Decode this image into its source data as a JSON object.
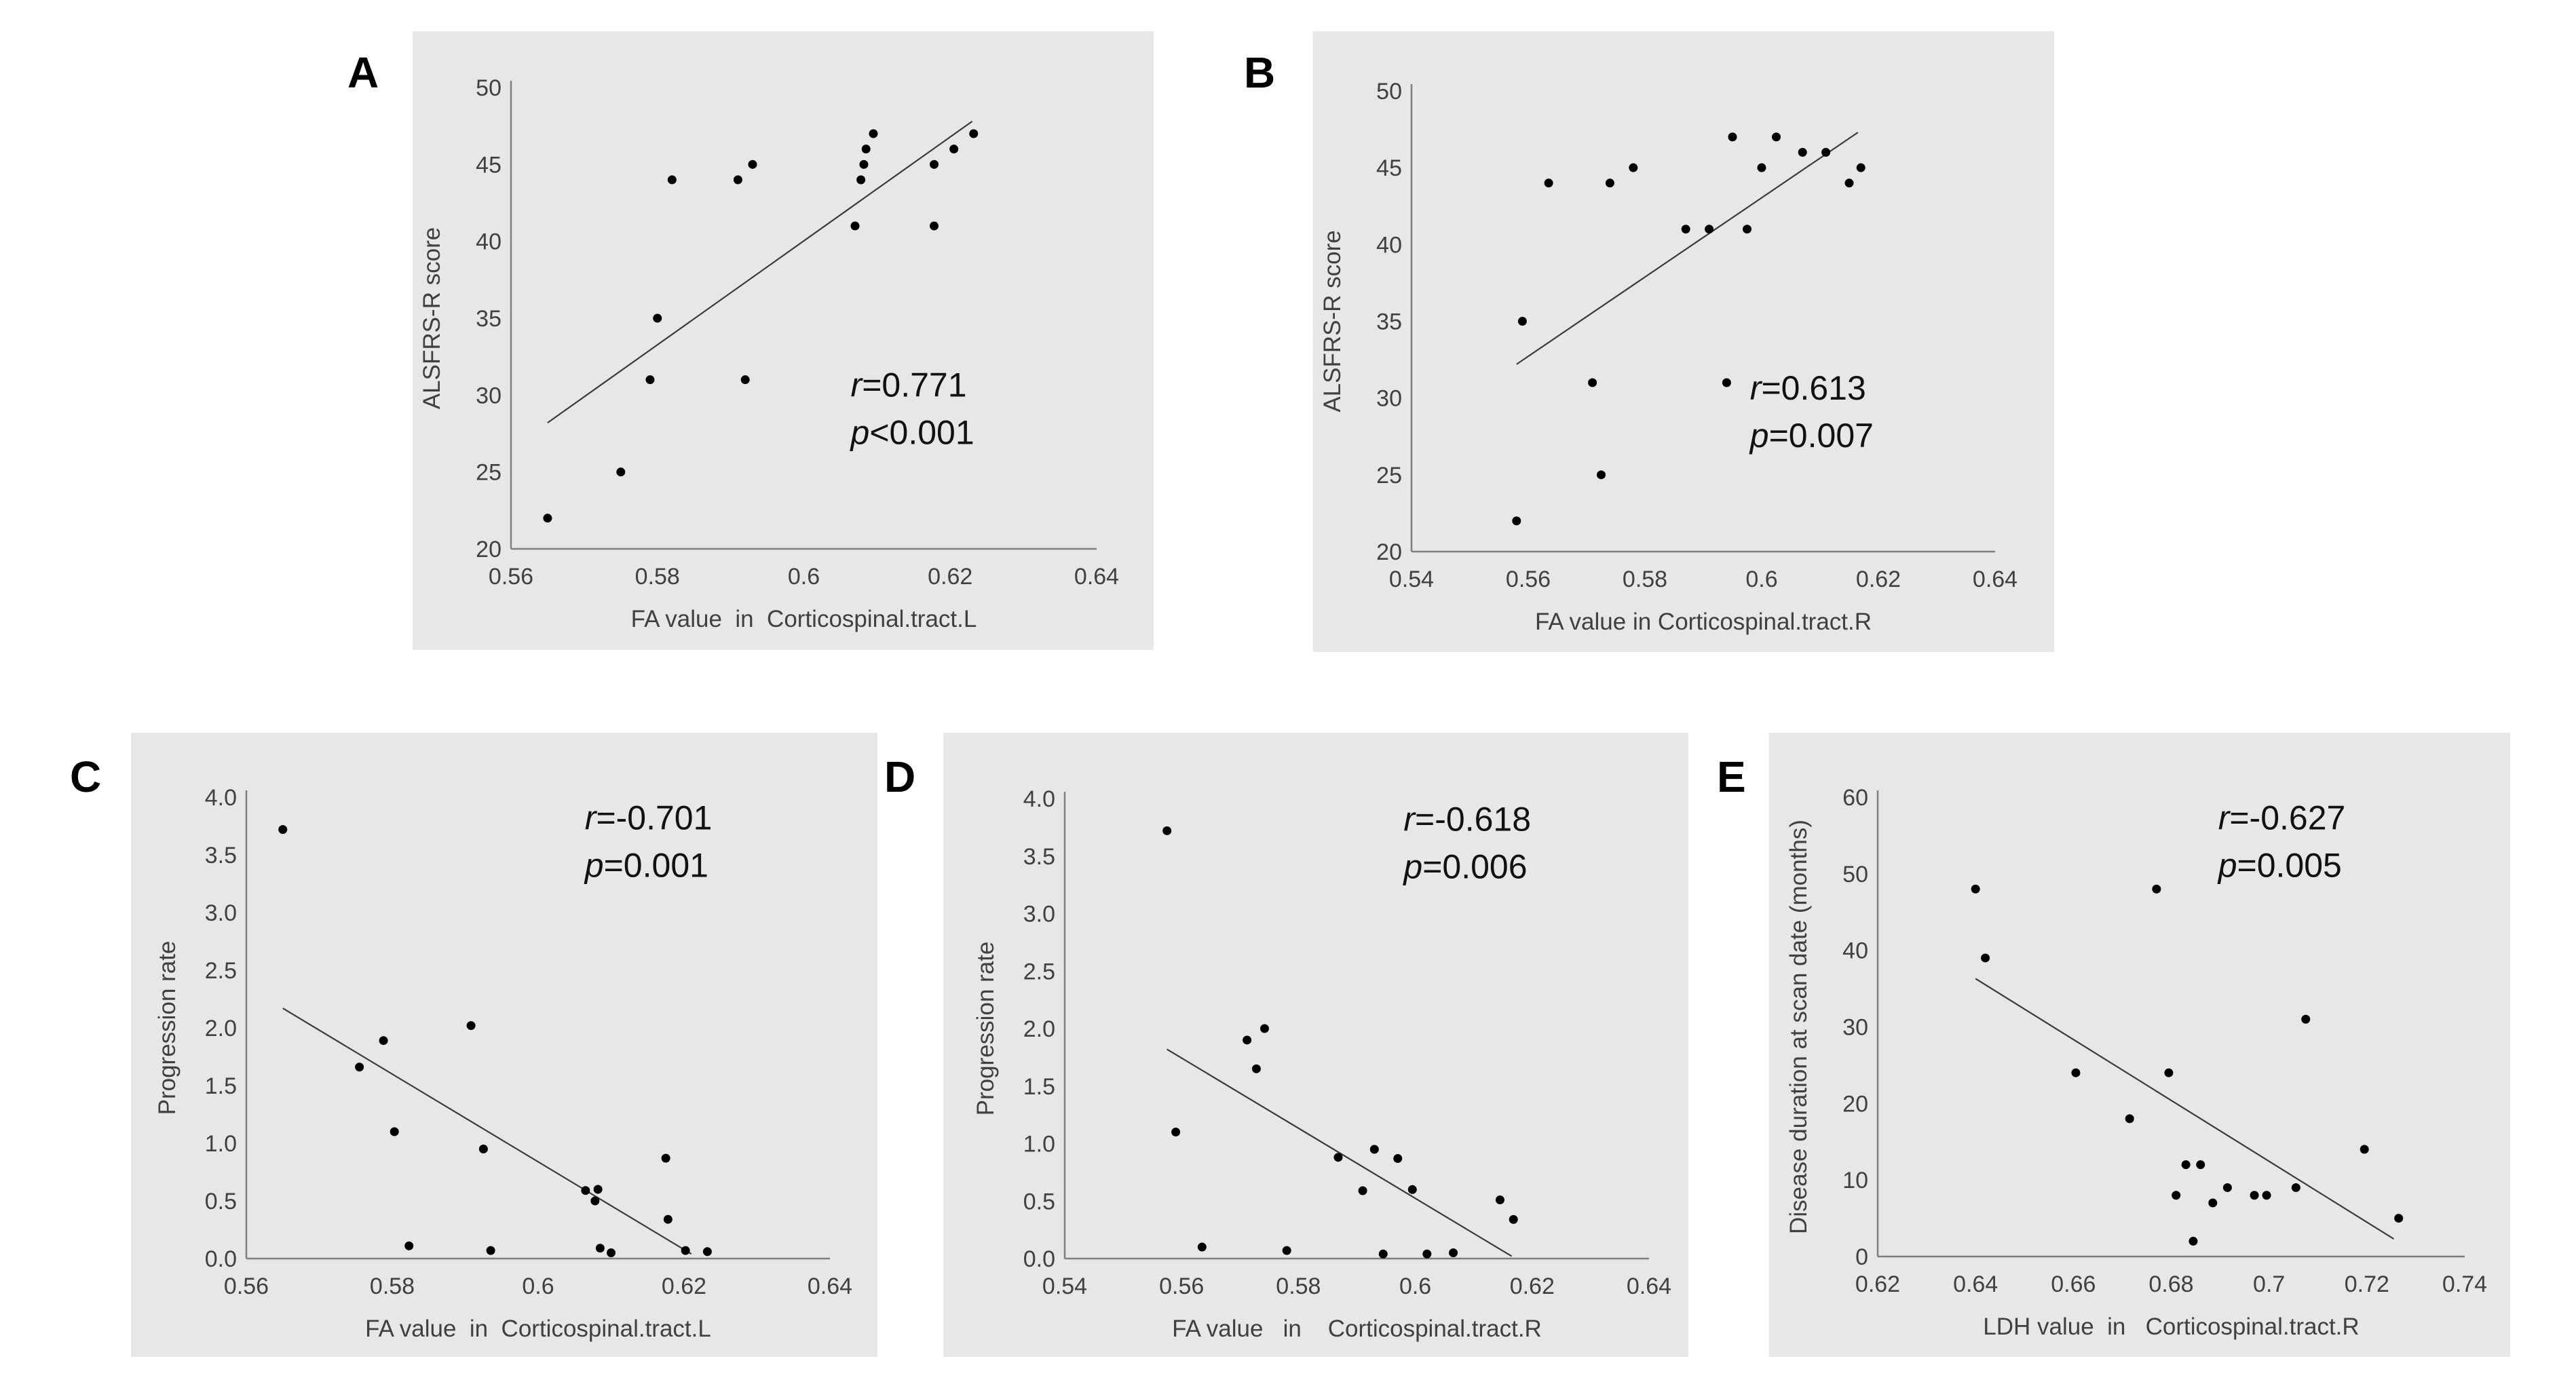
{
  "chart_data": [
    {
      "id": "A",
      "panel_label": "A",
      "type": "scatter",
      "xlabel": "FA value  in  Corticospinal.tract.L",
      "ylabel": "ALSFRS-R score",
      "xlim": [
        0.56,
        0.64
      ],
      "ylim": [
        20,
        50
      ],
      "xticks": [
        0.56,
        0.58,
        0.6,
        0.62,
        0.64
      ],
      "xtick_labels": [
        "0.56",
        "0.58",
        "0.6",
        "0.62",
        "0.64"
      ],
      "yticks": [
        20,
        25,
        30,
        35,
        40,
        45,
        50
      ],
      "ytick_labels": [
        "20",
        "25",
        "30",
        "35",
        "40",
        "45",
        "50"
      ],
      "points": [
        [
          0.565,
          22
        ],
        [
          0.575,
          25
        ],
        [
          0.579,
          31
        ],
        [
          0.58,
          35
        ],
        [
          0.582,
          44
        ],
        [
          0.591,
          44
        ],
        [
          0.593,
          45
        ],
        [
          0.592,
          31
        ],
        [
          0.607,
          41
        ],
        [
          0.6078,
          44
        ],
        [
          0.6082,
          45
        ],
        [
          0.6085,
          46
        ],
        [
          0.6095,
          47
        ],
        [
          0.6178,
          45
        ],
        [
          0.6178,
          41
        ],
        [
          0.6205,
          46
        ],
        [
          0.6232,
          47
        ]
      ],
      "trendline": [
        [
          0.565,
          28.2
        ],
        [
          0.623,
          47.8
        ]
      ],
      "annotation": {
        "r_label": "r",
        "r_value": "=0.771",
        "p_label": "p",
        "p_value": "<0.001"
      }
    },
    {
      "id": "B",
      "panel_label": "B",
      "type": "scatter",
      "xlabel": "FA value in Corticospinal.tract.R",
      "ylabel": "ALSFRS-R score",
      "xlim": [
        0.54,
        0.64
      ],
      "ylim": [
        20,
        50
      ],
      "xticks": [
        0.54,
        0.56,
        0.58,
        0.6,
        0.62,
        0.64
      ],
      "xtick_labels": [
        "0.54",
        "0.56",
        "0.58",
        "0.6",
        "0.62",
        "0.64"
      ],
      "yticks": [
        20,
        25,
        30,
        35,
        40,
        45,
        50
      ],
      "ytick_labels": [
        "20",
        "25",
        "30",
        "35",
        "40",
        "45",
        "50"
      ],
      "points": [
        [
          0.558,
          22
        ],
        [
          0.559,
          35
        ],
        [
          0.5635,
          44
        ],
        [
          0.571,
          31
        ],
        [
          0.5725,
          25
        ],
        [
          0.574,
          44
        ],
        [
          0.578,
          45
        ],
        [
          0.587,
          41
        ],
        [
          0.591,
          41
        ],
        [
          0.594,
          31
        ],
        [
          0.595,
          47
        ],
        [
          0.5975,
          41
        ],
        [
          0.6,
          45
        ],
        [
          0.6025,
          47
        ],
        [
          0.607,
          46
        ],
        [
          0.611,
          46
        ],
        [
          0.615,
          44
        ],
        [
          0.617,
          45
        ]
      ],
      "trendline": [
        [
          0.558,
          32.2
        ],
        [
          0.6165,
          47.3
        ]
      ],
      "annotation": {
        "r_label": "r",
        "r_value": "=0.613",
        "p_label": "p",
        "p_value": "=0.007"
      }
    },
    {
      "id": "C",
      "panel_label": "C",
      "type": "scatter",
      "xlabel": "FA value  in  Corticospinal.tract.L",
      "ylabel": "Progression rate",
      "xlim": [
        0.56,
        0.64
      ],
      "ylim": [
        0,
        4
      ],
      "xticks": [
        0.56,
        0.58,
        0.6,
        0.62,
        0.64
      ],
      "xtick_labels": [
        "0.56",
        "0.58",
        "0.6",
        "0.62",
        "0.64"
      ],
      "yticks": [
        0,
        0.5,
        1,
        1.5,
        2,
        2.5,
        3,
        3.5,
        4
      ],
      "ytick_labels": [
        "0.0",
        "0.5",
        "1.0",
        "1.5",
        "2.0",
        "2.5",
        "3.0",
        "3.5",
        "4.0"
      ],
      "points": [
        [
          0.565,
          3.72
        ],
        [
          0.5755,
          1.66
        ],
        [
          0.5788,
          1.89
        ],
        [
          0.5803,
          1.1
        ],
        [
          0.5823,
          0.11
        ],
        [
          0.5908,
          2.02
        ],
        [
          0.5925,
          0.95
        ],
        [
          0.5935,
          0.07
        ],
        [
          0.6065,
          0.59
        ],
        [
          0.6078,
          0.5
        ],
        [
          0.6082,
          0.6
        ],
        [
          0.6085,
          0.09
        ],
        [
          0.61,
          0.05
        ],
        [
          0.6175,
          0.87
        ],
        [
          0.6178,
          0.34
        ],
        [
          0.6202,
          0.07
        ],
        [
          0.6232,
          0.06
        ]
      ],
      "trendline": [
        [
          0.565,
          2.17
        ],
        [
          0.621,
          0.04
        ]
      ],
      "annotation": {
        "r_label": "r",
        "r_value": "=-0.701",
        "p_label": "p",
        "p_value": "=0.001"
      }
    },
    {
      "id": "D",
      "panel_label": "D",
      "type": "scatter",
      "xlabel": "FA value   in    Corticospinal.tract.R",
      "ylabel": "Progression rate",
      "xlim": [
        0.54,
        0.64
      ],
      "ylim": [
        0,
        4
      ],
      "xticks": [
        0.54,
        0.56,
        0.58,
        0.6,
        0.62,
        0.64
      ],
      "xtick_labels": [
        "0.54",
        "0.56",
        "0.58",
        "0.6",
        "0.62",
        "0.64"
      ],
      "yticks": [
        0,
        0.5,
        1,
        1.5,
        2,
        2.5,
        3,
        3.5,
        4
      ],
      "ytick_labels": [
        "0.0",
        "0.5",
        "1.0",
        "1.5",
        "2.0",
        "2.5",
        "3.0",
        "3.5",
        "4.0"
      ],
      "points": [
        [
          0.5575,
          3.72
        ],
        [
          0.559,
          1.1
        ],
        [
          0.5635,
          0.1
        ],
        [
          0.5712,
          1.9
        ],
        [
          0.5728,
          1.65
        ],
        [
          0.5742,
          2.0
        ],
        [
          0.578,
          0.07
        ],
        [
          0.5868,
          0.88
        ],
        [
          0.591,
          0.59
        ],
        [
          0.593,
          0.95
        ],
        [
          0.5945,
          0.04
        ],
        [
          0.597,
          0.87
        ],
        [
          0.5995,
          0.6
        ],
        [
          0.602,
          0.04
        ],
        [
          0.6065,
          0.05
        ],
        [
          0.6145,
          0.51
        ],
        [
          0.6168,
          0.34
        ]
      ],
      "trendline": [
        [
          0.5575,
          1.82
        ],
        [
          0.6165,
          0.02
        ]
      ],
      "annotation": {
        "r_label": "r",
        "r_value": "=-0.618",
        "p_label": "p",
        "p_value": "=0.006"
      }
    },
    {
      "id": "E",
      "panel_label": "E",
      "type": "scatter",
      "xlabel": "LDH value  in   Corticospinal.tract.R",
      "ylabel": "Disease duration at scan date (months)",
      "xlim": [
        0.62,
        0.74
      ],
      "ylim": [
        0,
        60
      ],
      "xticks": [
        0.62,
        0.64,
        0.66,
        0.68,
        0.7,
        0.72,
        0.74
      ],
      "xtick_labels": [
        "0.62",
        "0.64",
        "0.66",
        "0.68",
        "0.7",
        "0.72",
        "0.74"
      ],
      "yticks": [
        0,
        10,
        20,
        30,
        40,
        50,
        60
      ],
      "ytick_labels": [
        "0",
        "10",
        "20",
        "30",
        "40",
        "50",
        "60"
      ],
      "points": [
        [
          0.64,
          48
        ],
        [
          0.642,
          39
        ],
        [
          0.6605,
          24
        ],
        [
          0.6715,
          18
        ],
        [
          0.677,
          48
        ],
        [
          0.6795,
          24
        ],
        [
          0.681,
          8
        ],
        [
          0.683,
          12
        ],
        [
          0.6845,
          2
        ],
        [
          0.686,
          12
        ],
        [
          0.6885,
          7
        ],
        [
          0.6915,
          9
        ],
        [
          0.697,
          8
        ],
        [
          0.6995,
          8
        ],
        [
          0.7055,
          9
        ],
        [
          0.7075,
          31
        ],
        [
          0.7195,
          14
        ],
        [
          0.7265,
          5
        ]
      ],
      "trendline": [
        [
          0.64,
          36.3
        ],
        [
          0.7255,
          2.3
        ]
      ],
      "annotation": {
        "r_label": "r",
        "r_value": "=-0.627",
        "p_label": "p",
        "p_value": "=0.005"
      }
    }
  ]
}
